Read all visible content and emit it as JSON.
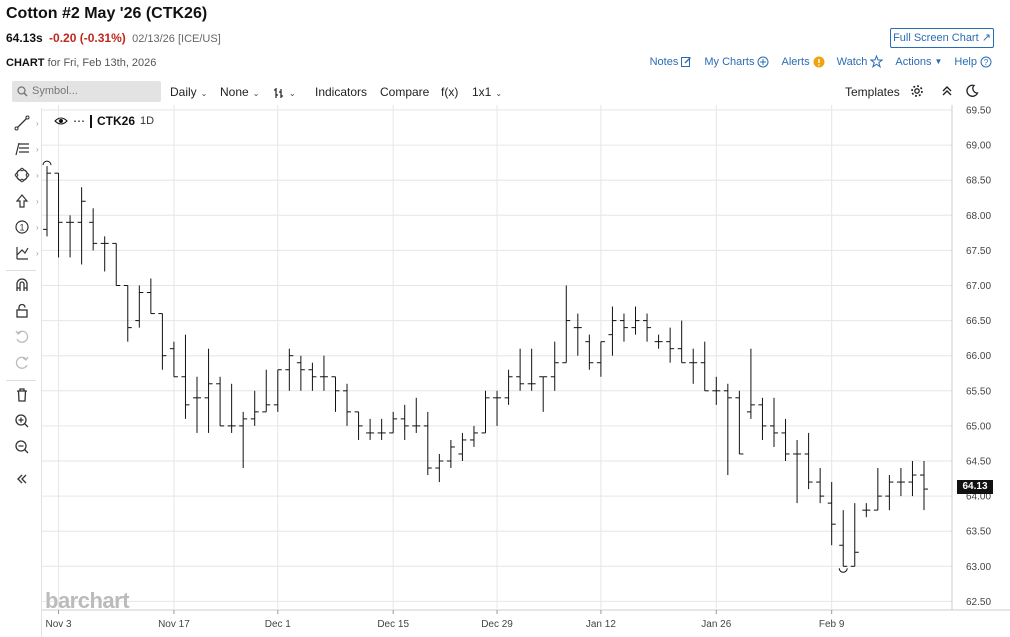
{
  "header": {
    "title": "Cotton #2 May '26 (CTK26)",
    "last": "64.13s",
    "change": "-0.20 (-0.31%)",
    "meta": "02/13/26 [ICE/US]",
    "full_screen_label": "Full Screen Chart",
    "chart_label": "CHART",
    "chart_date": "for Fri, Feb 13th, 2026"
  },
  "menu": {
    "notes": "Notes",
    "my_charts": "My Charts",
    "alerts": "Alerts",
    "watch": "Watch",
    "actions": "Actions",
    "help": "Help"
  },
  "toolbar": {
    "symbol_placeholder": "Symbol...",
    "interval": "Daily",
    "overlay": "None",
    "indicators": "Indicators",
    "compare": "Compare",
    "fx": "f(x)",
    "layout": "1x1",
    "templates": "Templates"
  },
  "left_tools": [
    "line-tool-icon",
    "fib-tool-icon",
    "shape-tool-icon",
    "arrow-tool-icon",
    "number-tool-icon",
    "measure-tool-icon",
    "magnet-icon",
    "lock-icon",
    "undo-icon",
    "redo-icon",
    "trash-icon",
    "zoom-in-icon",
    "zoom-out-icon",
    "collapse-icon"
  ],
  "legend": {
    "symbol": "CTK26",
    "period": "1D"
  },
  "watermark": "barchart",
  "colors": {
    "accent": "#2a6cb3",
    "down": "#c0271c",
    "bars": "#111111",
    "alert": "#f0a30a"
  },
  "chart_data": {
    "type": "ohlc",
    "x_tick_labels": [
      "Nov 3",
      "Nov 17",
      "Dec 1",
      "Dec 15",
      "Dec 29",
      "Jan 12",
      "Jan 26",
      "Feb 9"
    ],
    "y_tick_labels": [
      "62.50",
      "63.00",
      "63.50",
      "64.00",
      "64.50",
      "65.00",
      "65.50",
      "66.00",
      "66.50",
      "67.00",
      "67.50",
      "68.00",
      "68.50",
      "69.00",
      "69.50"
    ],
    "ylim": [
      62.4,
      69.6
    ],
    "grid": true,
    "last_price_label": "64.13",
    "bars": [
      {
        "date": "Oct 31",
        "o": 67.8,
        "h": 68.7,
        "l": 67.7,
        "c": 68.6
      },
      {
        "date": "Nov 3",
        "o": 68.6,
        "h": 68.6,
        "l": 67.4,
        "c": 67.9
      },
      {
        "date": "Nov 4",
        "o": 67.9,
        "h": 68.0,
        "l": 67.4,
        "c": 67.9
      },
      {
        "date": "Nov 5",
        "o": 67.9,
        "h": 68.4,
        "l": 67.3,
        "c": 68.2
      },
      {
        "date": "Nov 6",
        "o": 67.9,
        "h": 68.1,
        "l": 67.5,
        "c": 67.6
      },
      {
        "date": "Nov 7",
        "o": 67.6,
        "h": 67.7,
        "l": 67.2,
        "c": 67.6
      },
      {
        "date": "Nov 10",
        "o": 67.6,
        "h": 67.6,
        "l": 67.0,
        "c": 67.0
      },
      {
        "date": "Nov 11",
        "o": 67.0,
        "h": 67.0,
        "l": 66.2,
        "c": 66.4
      },
      {
        "date": "Nov 12",
        "o": 66.5,
        "h": 67.0,
        "l": 66.4,
        "c": 66.9
      },
      {
        "date": "Nov 13",
        "o": 66.9,
        "h": 67.1,
        "l": 66.6,
        "c": 66.6
      },
      {
        "date": "Nov 14",
        "o": 66.6,
        "h": 66.6,
        "l": 65.8,
        "c": 66.0
      },
      {
        "date": "Nov 17",
        "o": 66.1,
        "h": 66.2,
        "l": 65.7,
        "c": 65.7
      },
      {
        "date": "Nov 18",
        "o": 65.7,
        "h": 66.3,
        "l": 65.1,
        "c": 65.3
      },
      {
        "date": "Nov 19",
        "o": 65.4,
        "h": 65.7,
        "l": 64.9,
        "c": 65.4
      },
      {
        "date": "Nov 20",
        "o": 65.4,
        "h": 66.1,
        "l": 64.9,
        "c": 65.6
      },
      {
        "date": "Nov 21",
        "o": 65.6,
        "h": 65.7,
        "l": 65.0,
        "c": 65.0
      },
      {
        "date": "Nov 24",
        "o": 65.0,
        "h": 65.6,
        "l": 64.9,
        "c": 65.0
      },
      {
        "date": "Nov 25",
        "o": 65.0,
        "h": 65.2,
        "l": 64.4,
        "c": 65.1
      },
      {
        "date": "Nov 26",
        "o": 65.1,
        "h": 65.5,
        "l": 65.0,
        "c": 65.2
      },
      {
        "date": "Nov 28",
        "o": 65.2,
        "h": 65.8,
        "l": 65.2,
        "c": 65.3
      },
      {
        "date": "Dec 1",
        "o": 65.3,
        "h": 65.8,
        "l": 65.2,
        "c": 65.8
      },
      {
        "date": "Dec 2",
        "o": 65.8,
        "h": 66.1,
        "l": 65.5,
        "c": 66.0
      },
      {
        "date": "Dec 3",
        "o": 65.9,
        "h": 66.0,
        "l": 65.5,
        "c": 65.8
      },
      {
        "date": "Dec 4",
        "o": 65.8,
        "h": 65.9,
        "l": 65.5,
        "c": 65.7
      },
      {
        "date": "Dec 5",
        "o": 65.7,
        "h": 66.0,
        "l": 65.5,
        "c": 65.7
      },
      {
        "date": "Dec 8",
        "o": 65.7,
        "h": 65.7,
        "l": 65.2,
        "c": 65.5
      },
      {
        "date": "Dec 9",
        "o": 65.5,
        "h": 65.6,
        "l": 65.0,
        "c": 65.2
      },
      {
        "date": "Dec 10",
        "o": 65.2,
        "h": 65.2,
        "l": 64.8,
        "c": 65.0
      },
      {
        "date": "Dec 11",
        "o": 64.9,
        "h": 65.1,
        "l": 64.8,
        "c": 64.9
      },
      {
        "date": "Dec 12",
        "o": 64.9,
        "h": 65.1,
        "l": 64.8,
        "c": 64.9
      },
      {
        "date": "Dec 15",
        "o": 64.9,
        "h": 65.2,
        "l": 64.9,
        "c": 65.1
      },
      {
        "date": "Dec 16",
        "o": 65.1,
        "h": 65.3,
        "l": 64.8,
        "c": 65.0
      },
      {
        "date": "Dec 17",
        "o": 65.0,
        "h": 65.4,
        "l": 64.9,
        "c": 65.0
      },
      {
        "date": "Dec 18",
        "o": 65.0,
        "h": 65.2,
        "l": 64.3,
        "c": 64.4
      },
      {
        "date": "Dec 19",
        "o": 64.4,
        "h": 64.6,
        "l": 64.2,
        "c": 64.5
      },
      {
        "date": "Dec 22",
        "o": 64.5,
        "h": 64.8,
        "l": 64.4,
        "c": 64.7
      },
      {
        "date": "Dec 23",
        "o": 64.6,
        "h": 64.9,
        "l": 64.5,
        "c": 64.8
      },
      {
        "date": "Dec 24",
        "o": 64.8,
        "h": 65.0,
        "l": 64.7,
        "c": 64.9
      },
      {
        "date": "Dec 26",
        "o": 64.9,
        "h": 65.5,
        "l": 64.9,
        "c": 65.4
      },
      {
        "date": "Dec 29",
        "o": 65.4,
        "h": 65.5,
        "l": 65.0,
        "c": 65.4
      },
      {
        "date": "Dec 30",
        "o": 65.4,
        "h": 65.8,
        "l": 65.3,
        "c": 65.7
      },
      {
        "date": "Dec 31",
        "o": 65.7,
        "h": 66.1,
        "l": 65.5,
        "c": 65.6
      },
      {
        "date": "Jan 2",
        "o": 65.6,
        "h": 66.1,
        "l": 65.5,
        "c": 65.6
      },
      {
        "date": "Jan 5",
        "o": 65.7,
        "h": 65.7,
        "l": 65.2,
        "c": 65.7
      },
      {
        "date": "Jan 6",
        "o": 65.7,
        "h": 66.2,
        "l": 65.5,
        "c": 65.9
      },
      {
        "date": "Jan 7",
        "o": 65.9,
        "h": 67.0,
        "l": 65.9,
        "c": 66.5
      },
      {
        "date": "Jan 8",
        "o": 66.4,
        "h": 66.6,
        "l": 66.0,
        "c": 66.4
      },
      {
        "date": "Jan 9",
        "o": 66.2,
        "h": 66.3,
        "l": 65.8,
        "c": 65.9
      },
      {
        "date": "Jan 12",
        "o": 65.9,
        "h": 66.2,
        "l": 65.7,
        "c": 66.2
      },
      {
        "date": "Jan 13",
        "o": 66.3,
        "h": 66.7,
        "l": 66.0,
        "c": 66.5
      },
      {
        "date": "Jan 14",
        "o": 66.5,
        "h": 66.6,
        "l": 66.2,
        "c": 66.4
      },
      {
        "date": "Jan 15",
        "o": 66.4,
        "h": 66.7,
        "l": 66.3,
        "c": 66.5
      },
      {
        "date": "Jan 16",
        "o": 66.5,
        "h": 66.6,
        "l": 66.2,
        "c": 66.4
      },
      {
        "date": "Jan 19",
        "o": 66.2,
        "h": 66.3,
        "l": 66.1,
        "c": 66.2
      },
      {
        "date": "Jan 20",
        "o": 66.2,
        "h": 66.4,
        "l": 65.9,
        "c": 66.1
      },
      {
        "date": "Jan 21",
        "o": 66.1,
        "h": 66.5,
        "l": 65.9,
        "c": 65.9
      },
      {
        "date": "Jan 22",
        "o": 65.9,
        "h": 66.1,
        "l": 65.6,
        "c": 65.9
      },
      {
        "date": "Jan 23",
        "o": 65.9,
        "h": 66.2,
        "l": 65.5,
        "c": 65.5
      },
      {
        "date": "Jan 26",
        "o": 65.5,
        "h": 65.7,
        "l": 65.3,
        "c": 65.5
      },
      {
        "date": "Jan 27",
        "o": 65.5,
        "h": 65.6,
        "l": 64.3,
        "c": 65.4
      },
      {
        "date": "Jan 28",
        "o": 65.4,
        "h": 65.5,
        "l": 64.6,
        "c": 64.6
      },
      {
        "date": "Jan 29",
        "o": 65.2,
        "h": 66.1,
        "l": 65.1,
        "c": 65.3
      },
      {
        "date": "Jan 30",
        "o": 65.3,
        "h": 65.4,
        "l": 64.8,
        "c": 65.0
      },
      {
        "date": "Feb 2",
        "o": 65.0,
        "h": 65.4,
        "l": 64.7,
        "c": 64.9
      },
      {
        "date": "Feb 3",
        "o": 64.9,
        "h": 65.1,
        "l": 64.5,
        "c": 64.6
      },
      {
        "date": "Feb 4",
        "o": 64.6,
        "h": 64.8,
        "l": 63.9,
        "c": 64.6
      },
      {
        "date": "Feb 5",
        "o": 64.6,
        "h": 64.9,
        "l": 64.1,
        "c": 64.2
      },
      {
        "date": "Feb 6",
        "o": 64.2,
        "h": 64.4,
        "l": 63.9,
        "c": 64.0
      },
      {
        "date": "Feb 9",
        "o": 63.9,
        "h": 64.2,
        "l": 63.3,
        "c": 63.6
      },
      {
        "date": "Feb 10",
        "o": 63.3,
        "h": 63.8,
        "l": 63.0,
        "c": 63.0
      },
      {
        "date": "Feb 11",
        "o": 63.0,
        "h": 63.9,
        "l": 63.0,
        "c": 63.2
      },
      {
        "date": "Feb 12",
        "o": 63.8,
        "h": 63.9,
        "l": 63.7,
        "c": 63.8
      },
      {
        "date": "Feb 13",
        "o": 63.8,
        "h": 64.4,
        "l": 63.8,
        "c": 64.0
      },
      {
        "date": "Feb 16",
        "o": 64.0,
        "h": 64.3,
        "l": 63.8,
        "c": 64.2
      },
      {
        "date": "Feb 17",
        "o": 64.2,
        "h": 64.4,
        "l": 64.0,
        "c": 64.2
      },
      {
        "date": "Feb 18",
        "o": 64.2,
        "h": 64.5,
        "l": 64.0,
        "c": 64.3
      },
      {
        "date": "Feb 19",
        "o": 64.3,
        "h": 64.5,
        "l": 63.8,
        "c": 64.1
      }
    ]
  }
}
